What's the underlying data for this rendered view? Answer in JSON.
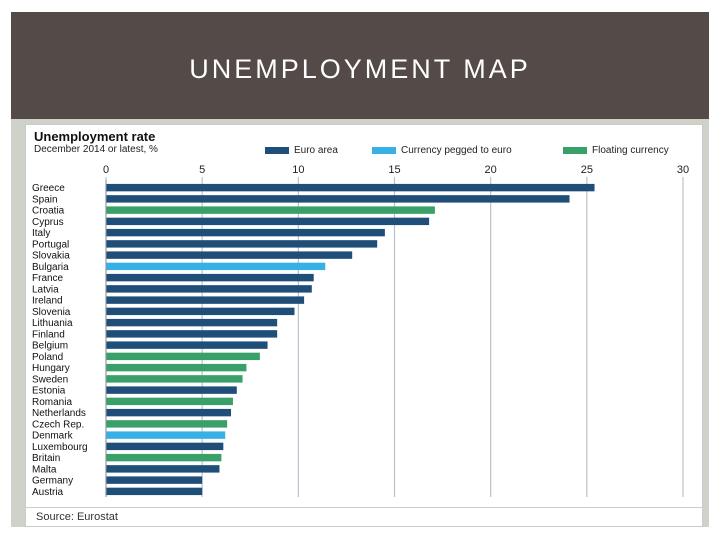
{
  "slide": {
    "title": "UNEMPLOYMENT MAP"
  },
  "colors": {
    "euro": "#1f4e78",
    "pegged": "#37b0e6",
    "floating": "#3aa069",
    "band": "#544a47"
  },
  "chart_data": {
    "type": "bar",
    "orientation": "horizontal",
    "title": "Unemployment rate",
    "subtitle": "December 2014 or latest, %",
    "source": "Source: Eurostat",
    "xlim": [
      0,
      30
    ],
    "xticks": [
      0,
      5,
      10,
      15,
      20,
      25,
      30
    ],
    "legend": [
      {
        "key": "euro",
        "label": "Euro area"
      },
      {
        "key": "pegged",
        "label": "Currency pegged to euro"
      },
      {
        "key": "floating",
        "label": "Floating currency"
      }
    ],
    "categories": [
      "Greece",
      "Spain",
      "Croatia",
      "Cyprus",
      "Italy",
      "Portugal",
      "Slovakia",
      "Bulgaria",
      "France",
      "Latvia",
      "Ireland",
      "Slovenia",
      "Lithuania",
      "Finland",
      "Belgium",
      "Poland",
      "Hungary",
      "Sweden",
      "Estonia",
      "Romania",
      "Netherlands",
      "Czech Rep.",
      "Denmark",
      "Luxembourg",
      "Britain",
      "Malta",
      "Germany",
      "Austria"
    ],
    "values": [
      25.4,
      24.1,
      17.1,
      16.8,
      14.5,
      14.1,
      12.8,
      11.4,
      10.8,
      10.7,
      10.3,
      9.8,
      8.9,
      8.9,
      8.4,
      8.0,
      7.3,
      7.1,
      6.8,
      6.6,
      6.5,
      6.3,
      6.2,
      6.1,
      6.0,
      5.9,
      5.0,
      5.0
    ],
    "groups": [
      "euro",
      "euro",
      "floating",
      "euro",
      "euro",
      "euro",
      "euro",
      "pegged",
      "euro",
      "euro",
      "euro",
      "euro",
      "euro",
      "euro",
      "euro",
      "floating",
      "floating",
      "floating",
      "euro",
      "floating",
      "euro",
      "floating",
      "pegged",
      "euro",
      "floating",
      "euro",
      "euro",
      "euro"
    ]
  }
}
